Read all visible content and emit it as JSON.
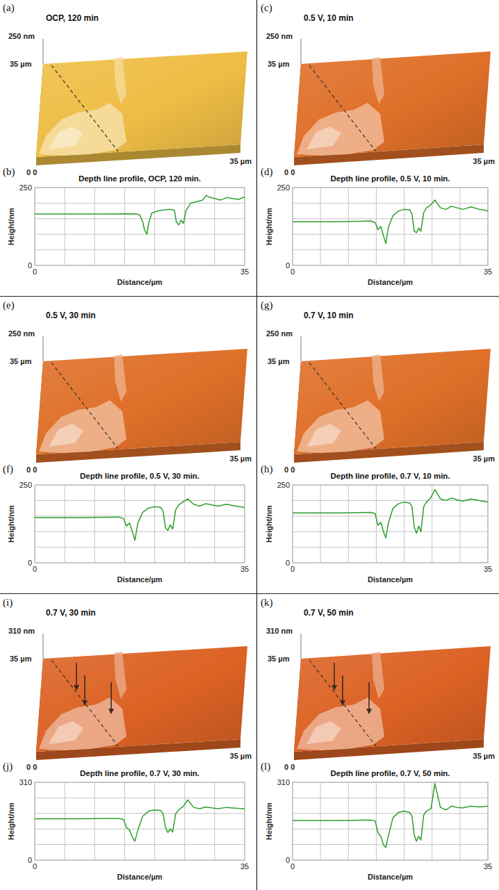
{
  "images": [
    {
      "panel": "(a)",
      "title": "OCP, 120 min",
      "z_label": "250 nm",
      "y_label": "35 µm",
      "x_label": "35 µm",
      "origin_label": "0 0",
      "color": "#eebd45"
    },
    {
      "panel": "(c)",
      "title": "0.5 V, 10 min",
      "z_label": "250 nm",
      "y_label": "35 µm",
      "x_label": "35 µm",
      "origin_label": "0 0",
      "color": "#df6f28"
    },
    {
      "panel": "(e)",
      "title": "0.5 V, 30 min",
      "z_label": "250 nm",
      "y_label": "35 µm",
      "x_label": "35 µm",
      "origin_label": "0 0",
      "color": "#df6f28"
    },
    {
      "panel": "(g)",
      "title": "0.7 V, 10 min",
      "z_label": "250 nm",
      "y_label": "35 µm",
      "x_label": "35 µm",
      "origin_label": "0 0",
      "color": "#df6f28"
    },
    {
      "panel": "(i)",
      "title": "0.7 V, 30 min",
      "z_label": "310 nm",
      "y_label": "35 µm",
      "x_label": "35 µm",
      "origin_label": "0 0",
      "color": "#dc6224",
      "marker": "arrow"
    },
    {
      "panel": "(k)",
      "title": "0.7 V, 50 min",
      "z_label": "310 nm",
      "y_label": "35 µm",
      "x_label": "35 µm",
      "origin_label": "0 0",
      "color": "#dc6224",
      "marker": "arrow"
    }
  ],
  "chart_data": [
    {
      "panel": "(b)",
      "type": "line",
      "title": "Depth line profile, OCP, 120 min.",
      "x_label": "Distance/µm",
      "y_label": "Height/nm",
      "color": "#2e9e2e",
      "grid": true,
      "x": [
        0,
        4,
        8,
        12,
        16,
        17,
        17.5,
        18,
        18.3,
        18.7,
        19,
        19.5,
        20.5,
        21.5,
        22.5,
        23.3,
        23.6,
        24,
        24.4,
        24.8,
        25.2,
        26,
        27,
        28,
        28.6,
        29,
        30,
        31,
        32,
        33,
        34,
        35
      ],
      "values": [
        165,
        165,
        165,
        165,
        166,
        165,
        162,
        140,
        115,
        100,
        135,
        168,
        175,
        178,
        180,
        178,
        140,
        130,
        145,
        135,
        175,
        200,
        205,
        210,
        225,
        220,
        215,
        210,
        218,
        215,
        212,
        220
      ],
      "xlim": [
        0,
        35
      ],
      "ylim": [
        0,
        250
      ],
      "xticks": [
        0,
        {
          "value": 5,
          "label": null
        },
        {
          "value": 10,
          "label": null
        },
        {
          "value": 15,
          "label": null
        },
        {
          "value": 20,
          "label": null
        },
        {
          "value": 25,
          "label": null
        },
        {
          "value": 30,
          "label": null
        },
        35
      ],
      "yticks": [
        0,
        {
          "value": 50,
          "label": null
        },
        {
          "value": 100,
          "label": null
        },
        {
          "value": 150,
          "label": null
        },
        {
          "value": 200,
          "label": null
        },
        250
      ]
    },
    {
      "panel": "(d)",
      "type": "line",
      "title": "Depth line profile, 0.5 V, 10 min.",
      "x_label": "Distance/µm",
      "y_label": "Height/nm",
      "color": "#2e9e2e",
      "grid": true,
      "x": [
        0,
        4,
        8,
        12,
        14,
        14.8,
        15.3,
        15.8,
        16.3,
        16.7,
        17.2,
        18,
        19,
        20,
        21,
        21.4,
        21.8,
        22.2,
        22.6,
        23,
        23.5,
        24,
        24.8,
        25.5,
        26.5,
        27.5,
        28.5,
        29.5,
        30.5,
        32,
        33.5,
        35
      ],
      "values": [
        140,
        140,
        140,
        142,
        143,
        138,
        115,
        125,
        95,
        70,
        125,
        160,
        175,
        180,
        178,
        165,
        110,
        105,
        120,
        110,
        170,
        185,
        195,
        210,
        185,
        180,
        190,
        185,
        180,
        188,
        180,
        175
      ],
      "xlim": [
        0,
        35
      ],
      "ylim": [
        0,
        250
      ],
      "xticks": [
        0,
        {
          "value": 5,
          "label": null
        },
        {
          "value": 10,
          "label": null
        },
        {
          "value": 15,
          "label": null
        },
        {
          "value": 20,
          "label": null
        },
        {
          "value": 25,
          "label": null
        },
        {
          "value": 30,
          "label": null
        },
        35
      ],
      "yticks": [
        0,
        {
          "value": 50,
          "label": null
        },
        {
          "value": 100,
          "label": null
        },
        {
          "value": 150,
          "label": null
        },
        {
          "value": 200,
          "label": null
        },
        250
      ]
    },
    {
      "panel": "(f)",
      "type": "line",
      "title": "Depth line profile, 0.5 V, 30 min.",
      "x_label": "Distance/µm",
      "y_label": "Height/nm",
      "color": "#2e9e2e",
      "grid": true,
      "x": [
        0,
        4,
        8,
        12,
        14,
        14.8,
        15.3,
        15.8,
        16.3,
        16.7,
        17.2,
        18,
        19,
        20,
        21,
        21.4,
        21.8,
        22.2,
        22.6,
        23,
        23.5,
        24,
        24.8,
        25.5,
        26.5,
        27.5,
        28.5,
        29.5,
        30.5,
        32,
        33.5,
        35
      ],
      "values": [
        145,
        145,
        145,
        146,
        147,
        142,
        118,
        128,
        98,
        72,
        128,
        162,
        176,
        180,
        178,
        166,
        112,
        104,
        122,
        108,
        170,
        186,
        196,
        205,
        188,
        182,
        190,
        186,
        182,
        188,
        182,
        178
      ],
      "xlim": [
        0,
        35
      ],
      "ylim": [
        0,
        250
      ],
      "xticks": [
        0,
        {
          "value": 5,
          "label": null
        },
        {
          "value": 10,
          "label": null
        },
        {
          "value": 15,
          "label": null
        },
        {
          "value": 20,
          "label": null
        },
        {
          "value": 25,
          "label": null
        },
        {
          "value": 30,
          "label": null
        },
        35
      ],
      "yticks": [
        0,
        {
          "value": 50,
          "label": null
        },
        {
          "value": 100,
          "label": null
        },
        {
          "value": 150,
          "label": null
        },
        {
          "value": 200,
          "label": null
        },
        250
      ]
    },
    {
      "panel": "(h)",
      "type": "line",
      "title": "Depth line profile, 0.7 V, 10 min.",
      "x_label": "Distance/µm",
      "y_label": "Height/nm",
      "color": "#2e9e2e",
      "grid": true,
      "x": [
        0,
        4,
        8,
        12,
        14,
        14.8,
        15.3,
        15.8,
        16.3,
        16.7,
        17.2,
        18,
        19,
        20,
        21,
        21.4,
        21.8,
        22.2,
        22.6,
        23,
        23.5,
        24,
        24.8,
        25.5,
        26.5,
        27.5,
        28.5,
        29.5,
        30.5,
        32,
        33.5,
        35
      ],
      "values": [
        160,
        160,
        160,
        161,
        162,
        158,
        120,
        130,
        100,
        80,
        130,
        175,
        190,
        195,
        192,
        180,
        115,
        95,
        118,
        100,
        180,
        195,
        210,
        235,
        205,
        200,
        208,
        202,
        198,
        205,
        200,
        195
      ],
      "xlim": [
        0,
        35
      ],
      "ylim": [
        0,
        250
      ],
      "xticks": [
        0,
        {
          "value": 5,
          "label": null
        },
        {
          "value": 10,
          "label": null
        },
        {
          "value": 15,
          "label": null
        },
        {
          "value": 20,
          "label": null
        },
        {
          "value": 25,
          "label": null
        },
        {
          "value": 30,
          "label": null
        },
        35
      ],
      "yticks": [
        0,
        {
          "value": 50,
          "label": null
        },
        {
          "value": 100,
          "label": null
        },
        {
          "value": 150,
          "label": null
        },
        {
          "value": 200,
          "label": null
        },
        250
      ]
    },
    {
      "panel": "(j)",
      "type": "line",
      "title": "Depth line profile, 0.7 V, 30 min.",
      "x_label": "Distance/µm",
      "y_label": "Height/nm",
      "color": "#2e9e2e",
      "grid": true,
      "x": [
        0,
        4,
        8,
        12,
        14,
        14.8,
        15.3,
        15.8,
        16.3,
        16.7,
        17.2,
        18,
        19,
        20,
        21,
        21.4,
        21.8,
        22.2,
        22.6,
        23,
        23.5,
        24,
        24.8,
        25.5,
        26.5,
        27.5,
        28.5,
        29.5,
        30.5,
        32,
        33.5,
        35
      ],
      "values": [
        165,
        165,
        165,
        166,
        166,
        162,
        130,
        120,
        90,
        75,
        120,
        175,
        195,
        200,
        198,
        185,
        130,
        110,
        125,
        112,
        185,
        200,
        215,
        240,
        210,
        205,
        212,
        208,
        205,
        210,
        207,
        205
      ],
      "xlim": [
        0,
        35
      ],
      "ylim": [
        0,
        310
      ],
      "xticks": [
        0,
        {
          "value": 5,
          "label": null
        },
        {
          "value": 10,
          "label": null
        },
        {
          "value": 15,
          "label": null
        },
        {
          "value": 20,
          "label": null
        },
        {
          "value": 25,
          "label": null
        },
        {
          "value": 30,
          "label": null
        },
        35
      ],
      "yticks": [
        0,
        {
          "value": 62,
          "label": null
        },
        {
          "value": 124,
          "label": null
        },
        {
          "value": 186,
          "label": null
        },
        {
          "value": 248,
          "label": null
        },
        310
      ]
    },
    {
      "panel": "(l)",
      "type": "line",
      "title": "Depth line profile, 0.7 V, 50 min.",
      "x_label": "Distance/µm",
      "y_label": "Height/nm",
      "color": "#2e9e2e",
      "grid": true,
      "x": [
        0,
        4,
        8,
        12,
        14,
        14.8,
        15.3,
        15.8,
        16.3,
        16.7,
        17.2,
        18,
        19,
        20,
        21,
        21.4,
        21.8,
        22.2,
        22.6,
        23,
        23.5,
        24,
        24.8,
        25.5,
        26.5,
        27.5,
        28.5,
        29.5,
        30.5,
        32,
        33.5,
        35
      ],
      "values": [
        158,
        158,
        158,
        159,
        160,
        156,
        110,
        95,
        60,
        50,
        100,
        170,
        190,
        195,
        190,
        175,
        100,
        75,
        95,
        80,
        180,
        195,
        205,
        305,
        210,
        200,
        215,
        210,
        208,
        215,
        212,
        215
      ],
      "xlim": [
        0,
        35
      ],
      "ylim": [
        0,
        310
      ],
      "xticks": [
        0,
        {
          "value": 5,
          "label": null
        },
        {
          "value": 10,
          "label": null
        },
        {
          "value": 15,
          "label": null
        },
        {
          "value": 20,
          "label": null
        },
        {
          "value": 25,
          "label": null
        },
        {
          "value": 30,
          "label": null
        },
        35
      ],
      "yticks": [
        0,
        {
          "value": 62,
          "label": null
        },
        {
          "value": 124,
          "label": null
        },
        {
          "value": 186,
          "label": null
        },
        {
          "value": 248,
          "label": null
        },
        310
      ]
    }
  ]
}
